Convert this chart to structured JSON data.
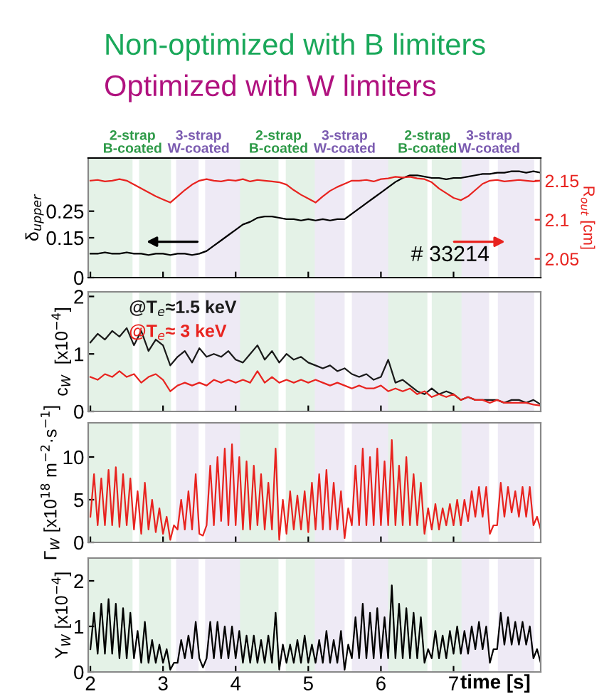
{
  "chart_data": [
    {
      "type": "line",
      "title": "Non-optimized with B limiters",
      "subtitle": "Optimized with W limiters",
      "ylabel": "δ$_{upper}$",
      "y2label": "R$_{out}$ [cm]",
      "xlim": [
        1.97,
        8.2
      ],
      "xticks": [
        2,
        3,
        4,
        5,
        6,
        7
      ],
      "ylim": [
        0,
        0.45
      ],
      "yticks": [
        0,
        0.15,
        0.25
      ],
      "y2lim": [
        2.026,
        2.179
      ],
      "y2ticks": [
        2.05,
        2.1,
        2.15
      ],
      "tick_labels": "y",
      "x": [
        2.0,
        2.1,
        2.2,
        2.3,
        2.4,
        2.5,
        2.6,
        2.7,
        2.8,
        2.9,
        3.0,
        3.1,
        3.2,
        3.3,
        3.4,
        3.5,
        3.6,
        3.7,
        3.8,
        3.9,
        4.0,
        4.1,
        4.2,
        4.3,
        4.4,
        4.5,
        4.6,
        4.7,
        4.8,
        4.9,
        5.0,
        5.1,
        5.2,
        5.3,
        5.4,
        5.5,
        5.6,
        5.7,
        5.8,
        5.9,
        6.0,
        6.1,
        6.2,
        6.3,
        6.4,
        6.5,
        6.6,
        6.7,
        6.8,
        6.9,
        7.0,
        7.1,
        7.2,
        7.3,
        7.4,
        7.5,
        7.6,
        7.7,
        7.8,
        7.9,
        8.0,
        8.1,
        8.2
      ],
      "series": [
        {
          "color": "#000000",
          "values": [
            0.09,
            0.09,
            0.095,
            0.09,
            0.09,
            0.095,
            0.09,
            0.09,
            0.085,
            0.09,
            0.09,
            0.085,
            0.09,
            0.09,
            0.085,
            0.09,
            0.1,
            0.12,
            0.14,
            0.16,
            0.18,
            0.2,
            0.21,
            0.225,
            0.23,
            0.23,
            0.225,
            0.22,
            0.22,
            0.215,
            0.22,
            0.215,
            0.22,
            0.215,
            0.22,
            0.22,
            0.24,
            0.26,
            0.28,
            0.3,
            0.32,
            0.34,
            0.36,
            0.375,
            0.385,
            0.385,
            0.38,
            0.375,
            0.375,
            0.37,
            0.375,
            0.375,
            0.38,
            0.385,
            0.39,
            0.39,
            0.395,
            0.395,
            0.4,
            0.4,
            0.395,
            0.4,
            0.395
          ]
        },
        {
          "color": "#e8231f",
          "axis": "y2",
          "values": [
            2.15,
            2.151,
            2.149,
            2.15,
            2.152,
            2.15,
            2.145,
            2.14,
            2.135,
            2.13,
            2.126,
            2.122,
            2.13,
            2.138,
            2.145,
            2.15,
            2.152,
            2.15,
            2.149,
            2.151,
            2.15,
            2.152,
            2.149,
            2.151,
            2.15,
            2.149,
            2.148,
            2.145,
            2.138,
            2.132,
            2.127,
            2.122,
            2.13,
            2.137,
            2.142,
            2.146,
            2.15,
            2.15,
            2.151,
            2.149,
            2.152,
            2.153,
            2.155,
            2.154,
            2.155,
            2.153,
            2.152,
            2.148,
            2.14,
            2.134,
            2.128,
            2.125,
            2.13,
            2.138,
            2.146,
            2.15,
            2.151,
            2.149,
            2.15,
            2.151,
            2.15,
            2.149,
            2.15
          ]
        }
      ],
      "annotations": [
        "# 33214"
      ],
      "bands": [
        {
          "axis": "x",
          "from": 1.98,
          "to": 2.58,
          "label": "2-strap\nB-coated",
          "color": "#2e9a48"
        },
        {
          "axis": "x",
          "from": 2.67,
          "to": 3.11,
          "color": "#2e9a48"
        },
        {
          "axis": "x",
          "from": 3.18,
          "to": 3.49,
          "label": "3-strap\nW-coated",
          "color": "#7b5bb0"
        },
        {
          "axis": "x",
          "from": 3.58,
          "to": 4.06,
          "color": "#7b5bb0"
        },
        {
          "axis": "x",
          "from": 4.06,
          "to": 4.59,
          "label": "2-strap\nB-coated",
          "color": "#2e9a48"
        },
        {
          "axis": "x",
          "from": 4.69,
          "to": 5.09,
          "color": "#2e9a48"
        },
        {
          "axis": "x",
          "from": 5.09,
          "to": 5.5,
          "label": "3-strap\nW-coated",
          "color": "#7b5bb0"
        },
        {
          "axis": "x",
          "from": 5.6,
          "to": 6.1,
          "color": "#7b5bb0"
        },
        {
          "axis": "x",
          "from": 6.1,
          "to": 6.64,
          "label": "2-strap\nB-coated",
          "color": "#2e9a48"
        },
        {
          "axis": "x",
          "from": 6.7,
          "to": 7.11,
          "color": "#2e9a48"
        },
        {
          "axis": "x",
          "from": 7.11,
          "to": 7.49,
          "label": "3-strap\nW-coated",
          "color": "#7b5bb0"
        },
        {
          "axis": "x",
          "from": 7.61,
          "to": 8.11,
          "color": "#7b5bb0"
        }
      ]
    },
    {
      "type": "line",
      "ylabel": "c$_{W}$  [x10$^{−4}$]",
      "xlim": [
        1.97,
        8.2
      ],
      "xticks": [
        2,
        3,
        4,
        5,
        6,
        7
      ],
      "ylim": [
        0,
        2.08
      ],
      "yticks": [
        0,
        1,
        2
      ],
      "tick_labels": "y",
      "x": [
        2.0,
        2.1,
        2.2,
        2.3,
        2.4,
        2.5,
        2.6,
        2.7,
        2.8,
        2.9,
        3.0,
        3.1,
        3.2,
        3.3,
        3.4,
        3.5,
        3.6,
        3.7,
        3.8,
        3.9,
        4.0,
        4.1,
        4.2,
        4.3,
        4.4,
        4.5,
        4.6,
        4.7,
        4.8,
        4.9,
        5.0,
        5.1,
        5.2,
        5.3,
        5.4,
        5.5,
        5.6,
        5.7,
        5.8,
        5.9,
        6.0,
        6.1,
        6.2,
        6.3,
        6.4,
        6.5,
        6.6,
        6.7,
        6.8,
        6.9,
        7.0,
        7.1,
        7.2,
        7.3,
        7.4,
        7.5,
        7.6,
        7.7,
        7.8,
        7.9,
        8.0,
        8.1,
        8.2
      ],
      "series": [
        {
          "name": "@T$_{e}$≈1.5 keV",
          "color": "#1a1a1a",
          "values": [
            1.2,
            1.35,
            1.25,
            1.4,
            1.3,
            1.45,
            1.15,
            1.4,
            1.05,
            1.25,
            1.15,
            0.8,
            0.95,
            1.05,
            0.85,
            1.1,
            0.95,
            1.0,
            0.95,
            1.05,
            0.9,
            0.85,
            1.0,
            1.15,
            0.9,
            1.05,
            0.85,
            1.0,
            0.9,
            0.95,
            0.85,
            0.8,
            0.75,
            0.8,
            0.7,
            0.75,
            0.65,
            0.6,
            0.65,
            0.55,
            0.6,
            0.9,
            0.5,
            0.55,
            0.45,
            0.35,
            0.3,
            0.4,
            0.3,
            0.35,
            0.3,
            0.2,
            0.25,
            0.2,
            0.2,
            0.2,
            0.2,
            0.15,
            0.2,
            0.2,
            0.15,
            0.2,
            0.12
          ]
        },
        {
          "name": "@T$_{e}$≈ 3 keV",
          "color": "#e8231f",
          "values": [
            0.6,
            0.55,
            0.65,
            0.6,
            0.7,
            0.6,
            0.65,
            0.5,
            0.6,
            0.65,
            0.55,
            0.35,
            0.45,
            0.5,
            0.45,
            0.5,
            0.45,
            0.55,
            0.5,
            0.55,
            0.5,
            0.55,
            0.5,
            0.7,
            0.5,
            0.6,
            0.5,
            0.55,
            0.5,
            0.55,
            0.5,
            0.55,
            0.5,
            0.45,
            0.5,
            0.45,
            0.4,
            0.45,
            0.4,
            0.4,
            0.45,
            0.35,
            0.4,
            0.35,
            0.4,
            0.3,
            0.35,
            0.25,
            0.3,
            0.25,
            0.3,
            0.2,
            0.25,
            0.2,
            0.2,
            0.15,
            0.2,
            0.15,
            0.15,
            0.15,
            0.15,
            0.12,
            0.1
          ]
        }
      ],
      "bands": [
        {
          "axis": "x",
          "from": 1.98,
          "to": 2.58,
          "color": "#2e9a48"
        },
        {
          "axis": "x",
          "from": 2.67,
          "to": 3.11,
          "color": "#2e9a48"
        },
        {
          "axis": "x",
          "from": 3.18,
          "to": 3.49,
          "color": "#7b5bb0"
        },
        {
          "axis": "x",
          "from": 3.58,
          "to": 4.06,
          "color": "#7b5bb0"
        },
        {
          "axis": "x",
          "from": 4.06,
          "to": 4.59,
          "color": "#2e9a48"
        },
        {
          "axis": "x",
          "from": 4.69,
          "to": 5.09,
          "color": "#2e9a48"
        },
        {
          "axis": "x",
          "from": 5.09,
          "to": 5.5,
          "color": "#7b5bb0"
        },
        {
          "axis": "x",
          "from": 5.6,
          "to": 6.1,
          "color": "#7b5bb0"
        },
        {
          "axis": "x",
          "from": 6.1,
          "to": 6.64,
          "color": "#2e9a48"
        },
        {
          "axis": "x",
          "from": 6.7,
          "to": 7.11,
          "color": "#2e9a48"
        },
        {
          "axis": "x",
          "from": 7.11,
          "to": 7.49,
          "color": "#7b5bb0"
        },
        {
          "axis": "x",
          "from": 7.61,
          "to": 8.11,
          "color": "#7b5bb0"
        }
      ]
    },
    {
      "type": "line",
      "ylabel": "Γ$_{W}$ [x10$^{18}$ m$^{−2}$·s$^{−1}$]",
      "xlim": [
        1.97,
        8.2
      ],
      "xticks": [
        2,
        3,
        4,
        5,
        6,
        7
      ],
      "ylim": [
        0,
        14
      ],
      "yticks": [
        0,
        5,
        10
      ],
      "tick_labels": "y",
      "x": [
        2.0,
        2.05,
        2.1,
        2.15,
        2.2,
        2.25,
        2.3,
        2.35,
        2.4,
        2.45,
        2.5,
        2.55,
        2.6,
        2.65,
        2.7,
        2.75,
        2.8,
        2.85,
        2.9,
        2.95,
        3.0,
        3.05,
        3.1,
        3.15,
        3.2,
        3.25,
        3.3,
        3.35,
        3.4,
        3.45,
        3.5,
        3.55,
        3.6,
        3.65,
        3.7,
        3.75,
        3.8,
        3.85,
        3.9,
        3.95,
        4.0,
        4.05,
        4.1,
        4.15,
        4.2,
        4.25,
        4.3,
        4.35,
        4.4,
        4.45,
        4.5,
        4.55,
        4.6,
        4.65,
        4.7,
        4.75,
        4.8,
        4.85,
        4.9,
        4.95,
        5.0,
        5.05,
        5.1,
        5.15,
        5.2,
        5.25,
        5.3,
        5.35,
        5.4,
        5.45,
        5.5,
        5.55,
        5.6,
        5.65,
        5.7,
        5.75,
        5.8,
        5.85,
        5.9,
        5.95,
        6.0,
        6.05,
        6.1,
        6.15,
        6.2,
        6.25,
        6.3,
        6.35,
        6.4,
        6.45,
        6.5,
        6.55,
        6.6,
        6.65,
        6.7,
        6.75,
        6.8,
        6.85,
        6.9,
        6.95,
        7.0,
        7.05,
        7.1,
        7.15,
        7.2,
        7.25,
        7.3,
        7.35,
        7.4,
        7.45,
        7.5,
        7.55,
        7.6,
        7.65,
        7.7,
        7.75,
        7.8,
        7.85,
        7.9,
        7.95,
        8.0,
        8.05,
        8.1,
        8.15,
        8.2
      ],
      "series": [
        {
          "color": "#e8231f",
          "values": [
            3,
            8,
            2,
            7.5,
            2,
            8.5,
            2,
            8.8,
            1.8,
            8,
            2,
            7.5,
            1.5,
            6,
            1,
            7,
            1.5,
            5,
            1.2,
            4,
            1,
            3,
            0.3,
            2,
            1.5,
            5,
            1.5,
            6,
            1.5,
            8,
            1,
            0.8,
            2,
            9,
            2,
            10,
            2.5,
            11,
            2,
            11.5,
            2,
            10,
            1.5,
            9.5,
            1.5,
            9,
            2,
            8,
            1.5,
            7,
            1.5,
            11,
            0.3,
            5,
            1,
            6,
            1.5,
            5.5,
            1.5,
            6,
            1.2,
            7,
            1.5,
            8,
            1.5,
            8.5,
            1.5,
            7,
            1.5,
            6,
            0.5,
            4,
            2,
            9,
            2,
            11,
            2,
            10,
            2,
            11,
            2,
            9.5,
            2,
            12,
            2,
            9,
            2,
            10,
            2,
            8,
            2,
            7,
            1,
            4,
            1.5,
            4.5,
            1.5,
            4,
            2,
            4.5,
            2,
            5,
            2,
            5,
            2.5,
            6,
            3,
            6.5,
            3,
            6.5,
            1,
            2,
            2,
            7,
            3,
            6.5,
            3.5,
            6,
            3,
            6.5,
            3,
            6.5,
            2,
            3,
            1.5
          ]
        }
      ],
      "bands": [
        {
          "axis": "x",
          "from": 1.98,
          "to": 2.58,
          "color": "#2e9a48"
        },
        {
          "axis": "x",
          "from": 2.67,
          "to": 3.11,
          "color": "#2e9a48"
        },
        {
          "axis": "x",
          "from": 3.18,
          "to": 3.49,
          "color": "#7b5bb0"
        },
        {
          "axis": "x",
          "from": 3.58,
          "to": 4.06,
          "color": "#7b5bb0"
        },
        {
          "axis": "x",
          "from": 4.06,
          "to": 4.59,
          "color": "#2e9a48"
        },
        {
          "axis": "x",
          "from": 4.69,
          "to": 5.09,
          "color": "#2e9a48"
        },
        {
          "axis": "x",
          "from": 5.09,
          "to": 5.5,
          "color": "#7b5bb0"
        },
        {
          "axis": "x",
          "from": 5.6,
          "to": 6.1,
          "color": "#7b5bb0"
        },
        {
          "axis": "x",
          "from": 6.1,
          "to": 6.64,
          "color": "#2e9a48"
        },
        {
          "axis": "x",
          "from": 6.7,
          "to": 7.11,
          "color": "#2e9a48"
        },
        {
          "axis": "x",
          "from": 7.11,
          "to": 7.49,
          "color": "#7b5bb0"
        },
        {
          "axis": "x",
          "from": 7.61,
          "to": 8.11,
          "color": "#7b5bb0"
        }
      ]
    },
    {
      "type": "line",
      "ylabel": "Y$_{W}$ [x10$^{−4}$]",
      "xlabel": "time [s]",
      "xlim": [
        1.97,
        8.2
      ],
      "xticks": [
        2,
        3,
        4,
        5,
        6,
        7
      ],
      "ylim": [
        0,
        2.5
      ],
      "yticks": [
        0,
        1,
        2
      ],
      "x": [
        2.0,
        2.05,
        2.1,
        2.15,
        2.2,
        2.25,
        2.3,
        2.35,
        2.4,
        2.45,
        2.5,
        2.55,
        2.6,
        2.65,
        2.7,
        2.75,
        2.8,
        2.85,
        2.9,
        2.95,
        3.0,
        3.05,
        3.1,
        3.15,
        3.2,
        3.25,
        3.3,
        3.35,
        3.4,
        3.45,
        3.5,
        3.55,
        3.6,
        3.65,
        3.7,
        3.75,
        3.8,
        3.85,
        3.9,
        3.95,
        4.0,
        4.05,
        4.1,
        4.15,
        4.2,
        4.25,
        4.3,
        4.35,
        4.4,
        4.45,
        4.5,
        4.55,
        4.6,
        4.65,
        4.7,
        4.75,
        4.8,
        4.85,
        4.9,
        4.95,
        5.0,
        5.05,
        5.1,
        5.15,
        5.2,
        5.25,
        5.3,
        5.35,
        5.4,
        5.45,
        5.5,
        5.55,
        5.6,
        5.65,
        5.7,
        5.75,
        5.8,
        5.85,
        5.9,
        5.95,
        6.0,
        6.05,
        6.1,
        6.15,
        6.2,
        6.25,
        6.3,
        6.35,
        6.4,
        6.45,
        6.5,
        6.55,
        6.6,
        6.65,
        6.7,
        6.75,
        6.8,
        6.85,
        6.9,
        6.95,
        7.0,
        7.05,
        7.1,
        7.15,
        7.2,
        7.25,
        7.3,
        7.35,
        7.4,
        7.45,
        7.5,
        7.55,
        7.6,
        7.65,
        7.7,
        7.75,
        7.8,
        7.85,
        7.9,
        7.95,
        8.0,
        8.05,
        8.1,
        8.15,
        8.2
      ],
      "series": [
        {
          "color": "#000000",
          "values": [
            0.5,
            1.3,
            0.4,
            1.5,
            0.4,
            1.6,
            0.4,
            1.5,
            0.3,
            1.4,
            0.3,
            1.3,
            0.3,
            0.9,
            0.2,
            1.1,
            0.2,
            0.7,
            0.2,
            0.6,
            0.2,
            0.5,
            0.05,
            0.2,
            0.2,
            0.7,
            0.3,
            0.8,
            0.3,
            1.1,
            0.3,
            0.1,
            0.3,
            1.1,
            0.3,
            1.1,
            0.3,
            1.0,
            0.3,
            1.0,
            0.3,
            0.9,
            0.2,
            0.8,
            0.2,
            0.8,
            0.2,
            0.7,
            0.2,
            0.8,
            0.2,
            1.3,
            0.05,
            0.6,
            0.2,
            0.6,
            0.2,
            0.7,
            0.2,
            0.8,
            0.2,
            0.6,
            0.2,
            0.7,
            0.2,
            0.9,
            0.2,
            0.7,
            0.2,
            0.9,
            0.05,
            0.6,
            0.3,
            1.2,
            0.3,
            1.5,
            0.3,
            1.3,
            0.3,
            1.4,
            0.3,
            1.2,
            0.3,
            1.9,
            0.3,
            1.5,
            0.3,
            1.4,
            0.3,
            1.3,
            0.3,
            1.2,
            0.2,
            0.5,
            0.3,
            0.9,
            0.3,
            0.8,
            0.3,
            0.9,
            0.4,
            1.0,
            0.4,
            0.9,
            0.4,
            1.0,
            0.5,
            1.1,
            0.5,
            1.0,
            0.2,
            0.5,
            0.5,
            1.3,
            0.6,
            1.2,
            0.6,
            1.1,
            0.6,
            1.1,
            0.6,
            1.0,
            0.3,
            0.5,
            0.2
          ]
        }
      ],
      "bands": [
        {
          "axis": "x",
          "from": 1.98,
          "to": 2.58,
          "color": "#2e9a48"
        },
        {
          "axis": "x",
          "from": 2.67,
          "to": 3.11,
          "color": "#2e9a48"
        },
        {
          "axis": "x",
          "from": 3.18,
          "to": 3.49,
          "color": "#7b5bb0"
        },
        {
          "axis": "x",
          "from": 3.58,
          "to": 4.06,
          "color": "#7b5bb0"
        },
        {
          "axis": "x",
          "from": 4.06,
          "to": 4.59,
          "color": "#2e9a48"
        },
        {
          "axis": "x",
          "from": 4.69,
          "to": 5.09,
          "color": "#2e9a48"
        },
        {
          "axis": "x",
          "from": 5.09,
          "to": 5.5,
          "color": "#7b5bb0"
        },
        {
          "axis": "x",
          "from": 5.6,
          "to": 6.1,
          "color": "#7b5bb0"
        },
        {
          "axis": "x",
          "from": 6.1,
          "to": 6.64,
          "color": "#2e9a48"
        },
        {
          "axis": "x",
          "from": 6.7,
          "to": 7.11,
          "color": "#2e9a48"
        },
        {
          "axis": "x",
          "from": 7.11,
          "to": 7.49,
          "color": "#7b5bb0"
        },
        {
          "axis": "x",
          "from": 7.61,
          "to": 8.11,
          "color": "#7b5bb0"
        }
      ]
    }
  ]
}
